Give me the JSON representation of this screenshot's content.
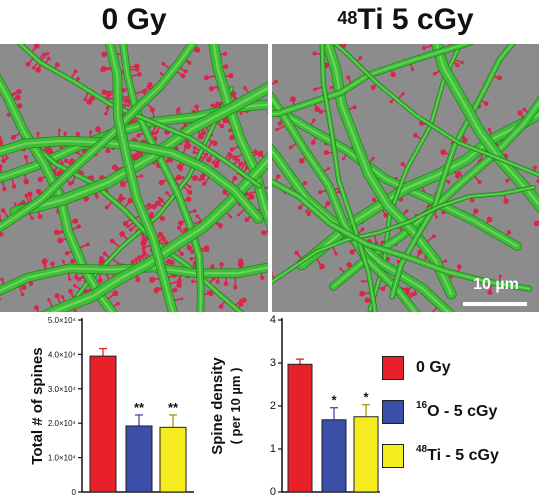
{
  "panels": {
    "left_title": "0 Gy",
    "right_title_sup": "48",
    "right_title_main": "Ti 5 cGy",
    "scale_bar": "10 µm"
  },
  "colors": {
    "dendrite": "#3dbf35",
    "spine": "#d9264a",
    "background": "#8c8c8c",
    "bar_0gy": "#e8202a",
    "bar_16o": "#3b4fa8",
    "bar_48ti": "#f5ec20"
  },
  "legend": [
    {
      "sup": "",
      "label": "0 Gy",
      "color": "#e8202a"
    },
    {
      "sup": "16",
      "label": "O - 5 cGy",
      "color": "#3b4fa8"
    },
    {
      "sup": "48",
      "label": "Ti - 5 cGy",
      "color": "#f5ec20"
    }
  ],
  "chart_data": [
    {
      "type": "bar",
      "ylabel": "Total # of spines",
      "ylim": [
        0,
        50000
      ],
      "yticks": [
        0,
        10000,
        20000,
        30000,
        40000,
        50000
      ],
      "ytick_labels": [
        "0",
        "1.0×10⁴",
        "2.0×10⁴",
        "3.0×10⁴",
        "4.0×10⁴",
        "5.0×10⁴"
      ],
      "categories": [
        "0 Gy",
        "16O - 5 cGy",
        "48Ti - 5 cGy"
      ],
      "values": [
        39500,
        19200,
        18800
      ],
      "errors": [
        2200,
        3200,
        3600
      ],
      "annotations": [
        "",
        "**",
        "**"
      ],
      "colors": [
        "#e8202a",
        "#3b4fa8",
        "#f5ec20"
      ]
    },
    {
      "type": "bar",
      "ylabel": "Spine density",
      "ylabel2": "( per 10 µm )",
      "ylim": [
        0,
        4
      ],
      "yticks": [
        0,
        1,
        2,
        3,
        4
      ],
      "ytick_labels": [
        "0",
        "1",
        "2",
        "3",
        "4"
      ],
      "categories": [
        "0 Gy",
        "16O - 5 cGy",
        "48Ti - 5 cGy"
      ],
      "values": [
        2.97,
        1.68,
        1.75
      ],
      "errors": [
        0.12,
        0.28,
        0.28
      ],
      "annotations": [
        "",
        "*",
        "*"
      ],
      "colors": [
        "#e8202a",
        "#3b4fa8",
        "#f5ec20"
      ]
    }
  ]
}
